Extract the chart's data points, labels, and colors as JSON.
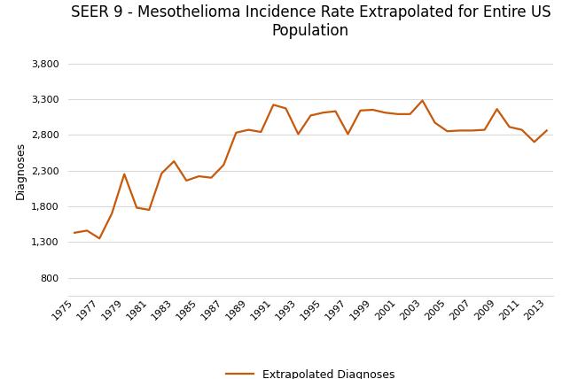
{
  "title": "SEER 9 - Mesothelioma Incidence Rate Extrapolated for Entire US\nPopulation",
  "ylabel": "Diagnoses",
  "legend_label": "Extrapolated Diagnoses",
  "line_color": "#C8590A",
  "background_color": "#ffffff",
  "years": [
    1975,
    1976,
    1977,
    1978,
    1979,
    1980,
    1981,
    1982,
    1983,
    1984,
    1985,
    1986,
    1987,
    1988,
    1989,
    1990,
    1991,
    1992,
    1993,
    1994,
    1995,
    1996,
    1997,
    1998,
    1999,
    2000,
    2001,
    2002,
    2003,
    2004,
    2005,
    2006,
    2007,
    2008,
    2009,
    2010,
    2011,
    2012,
    2013
  ],
  "values": [
    1430,
    1460,
    1350,
    1700,
    2250,
    1780,
    1750,
    2260,
    2430,
    2160,
    2220,
    2200,
    2380,
    2830,
    2870,
    2840,
    3220,
    3170,
    2810,
    3070,
    3110,
    3130,
    2810,
    3140,
    3150,
    3110,
    3090,
    3090,
    3280,
    2970,
    2850,
    2860,
    2860,
    2870,
    3160,
    2910,
    2870,
    2700,
    2860
  ],
  "yticks": [
    800,
    1300,
    1800,
    2300,
    2800,
    3300,
    3800
  ],
  "ylim": [
    550,
    4050
  ],
  "xtick_years": [
    1975,
    1977,
    1979,
    1981,
    1983,
    1985,
    1987,
    1989,
    1991,
    1993,
    1995,
    1997,
    1999,
    2001,
    2003,
    2005,
    2007,
    2009,
    2011,
    2013
  ],
  "grid_color": "#d9d9d9",
  "title_fontsize": 12,
  "ylabel_fontsize": 9,
  "tick_fontsize": 8,
  "legend_fontsize": 9,
  "line_width": 1.6
}
